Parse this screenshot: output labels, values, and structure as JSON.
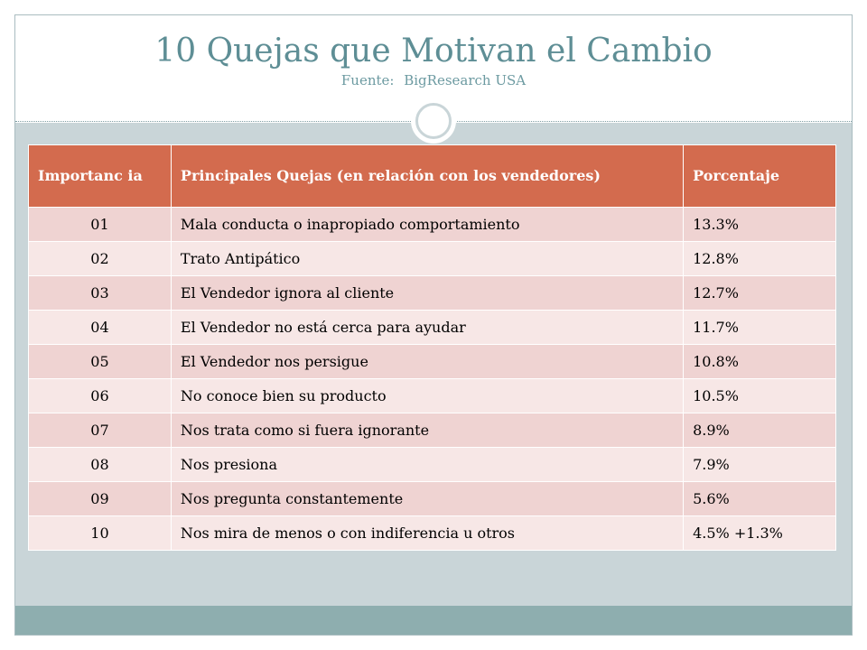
{
  "slide": {
    "title": "10 Quejas que Motivan el Cambio",
    "subtitle_label": "Fuente:",
    "subtitle_source": "BigResearch USA"
  },
  "table": {
    "headers": [
      "Importanc ia",
      "Principales Quejas (en relación con los vendedores)",
      "Porcentaje"
    ],
    "rows": [
      {
        "rank": "01",
        "complaint": "Mala conducta o inapropiado comportamiento",
        "percent": "13.3%"
      },
      {
        "rank": "02",
        "complaint": "Trato Antipático",
        "percent": "12.8%"
      },
      {
        "rank": "03",
        "complaint": "El Vendedor ignora al cliente",
        "percent": "12.7%"
      },
      {
        "rank": "04",
        "complaint": "El Vendedor no está cerca para ayudar",
        "percent": "11.7%"
      },
      {
        "rank": "05",
        "complaint": "El Vendedor nos persigue",
        "percent": "10.8%"
      },
      {
        "rank": "06",
        "complaint": "No conoce bien su producto",
        "percent": "10.5%"
      },
      {
        "rank": "07",
        "complaint": "Nos trata como si fuera ignorante",
        "percent": "8.9%"
      },
      {
        "rank": "08",
        "complaint": "Nos presiona",
        "percent": "7.9%"
      },
      {
        "rank": "09",
        "complaint": "Nos pregunta constantemente",
        "percent": "5.6%"
      },
      {
        "rank": "10",
        "complaint": "Nos mira de menos o con indiferencia u otros",
        "percent": "4.5% +1.3%"
      }
    ]
  },
  "colors": {
    "header_bg": "#d36b4e",
    "row_odd": "#efd3d2",
    "row_even": "#f7e7e6",
    "title": "#5e8e95",
    "content_bg": "#c9d5d8",
    "bottom_band": "#8eaeaf"
  }
}
